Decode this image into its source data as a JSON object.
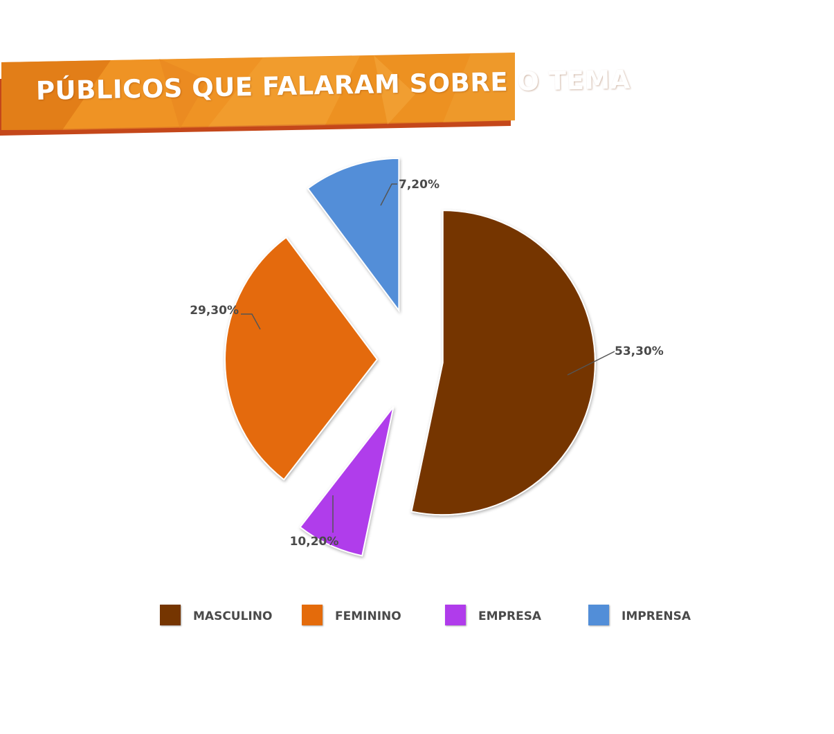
{
  "title": "PÚBLICOS QUE FALARAM SOBRE O TEMA",
  "colors": {
    "banner_main": "#ec8a1c",
    "banner_shadow": "#c4471a",
    "label_text": "#4a4a4a"
  },
  "chart_data": {
    "type": "pie",
    "exploded": true,
    "legend_position": "bottom",
    "slices": [
      {
        "name": "MASCULINO",
        "value": 53.3,
        "label": "53,30%",
        "color": "#753501"
      },
      {
        "name": "EMPRESA",
        "value": 7.2,
        "label": "7,20%",
        "color": "#b03ceb"
      },
      {
        "name": "FEMININO",
        "value": 29.3,
        "label": "29,30%",
        "color": "#e46b0b"
      },
      {
        "name": "IMPRENSA",
        "value": 10.2,
        "label": "10,20%",
        "color": "#528ed8"
      }
    ]
  },
  "legend": [
    {
      "label": "MASCULINO",
      "color": "#753501"
    },
    {
      "label": "FEMININO",
      "color": "#e46b0b"
    },
    {
      "label": "EMPRESA",
      "color": "#b03ceb"
    },
    {
      "label": "IMPRENSA",
      "color": "#528ed8"
    }
  ]
}
